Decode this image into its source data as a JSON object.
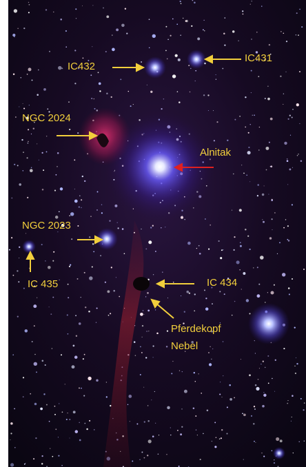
{
  "labels": [
    {
      "text": "IC432"
    },
    {
      "text": "IC431"
    },
    {
      "text": "NGC 2024"
    },
    {
      "text": "Alnitak"
    },
    {
      "text": "NGC 2023"
    },
    {
      "text": "IC 435"
    },
    {
      "text": "IC 434"
    },
    {
      "lines": [
        "Pferdekopf",
        "Nebel"
      ]
    }
  ]
}
